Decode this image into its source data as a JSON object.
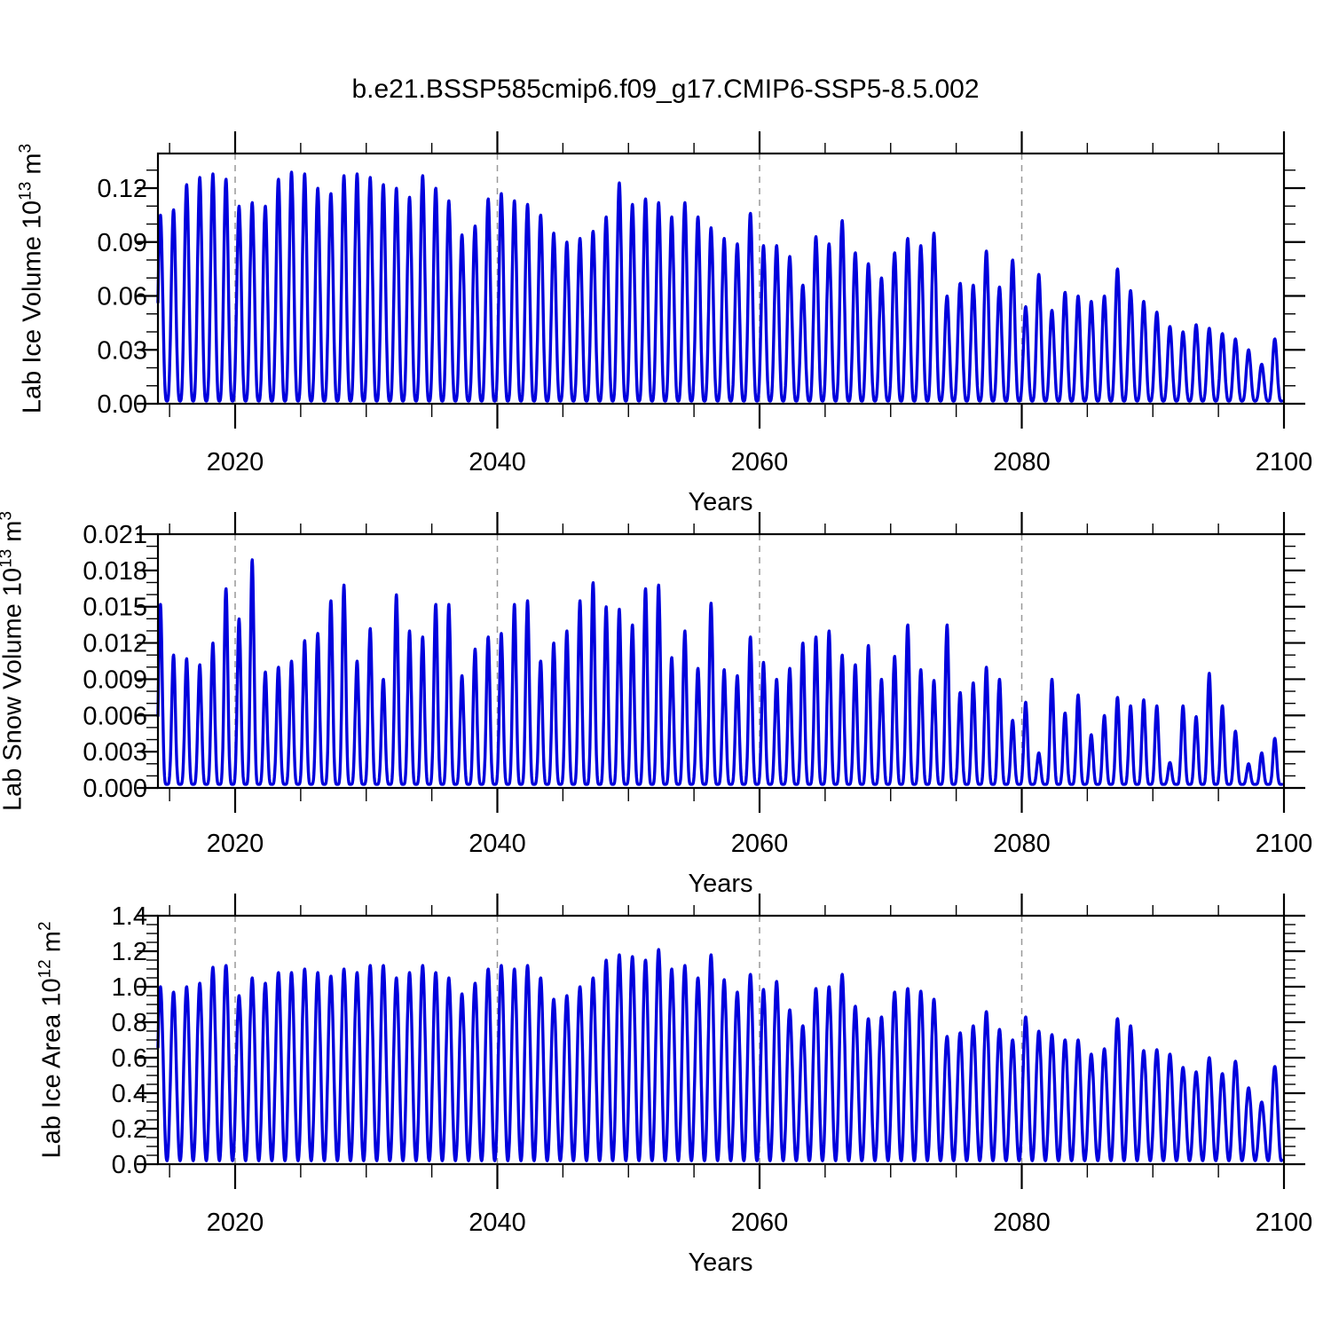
{
  "title": "b.e21.BSSP585cmip6.f09_g17.CMIP6-SSP5-8.5.002",
  "styles": {
    "background": "#ffffff",
    "line_color": "#0000dd",
    "axis_color": "#000000",
    "grid_color": "#999999",
    "text_color": "#000000"
  },
  "xaxis": {
    "label": "Years",
    "tick_years": [
      2020,
      2040,
      2060,
      2080,
      2100
    ],
    "tick_labels": [
      "2020",
      "2040",
      "2060",
      "2080",
      "2100"
    ],
    "minor_step": 5,
    "grid_years": [
      2020,
      2040,
      2060,
      2080
    ],
    "range": [
      2014.1,
      2100
    ]
  },
  "panels": [
    {
      "id": "ice-volume",
      "ylabel": {
        "text1": "Lab Ice Volume 10",
        "sup1": "13",
        "text2": " m",
        "sup2": "3"
      },
      "ytick_values": [
        0,
        0.03,
        0.06,
        0.09,
        0.12
      ],
      "ytick_labels": [
        "0.00",
        "0.03",
        "0.06",
        "0.09",
        "0.12"
      ],
      "yminor_step": 0.01,
      "ymax": 0.1393
    },
    {
      "id": "snow-volume",
      "ylabel": {
        "text1": "Lab Snow Volume 10",
        "sup1": "13",
        "text2": " m",
        "sup2": "3"
      },
      "ytick_values": [
        0,
        0.003,
        0.006,
        0.009,
        0.012,
        0.015,
        0.018,
        0.021
      ],
      "ytick_labels": [
        "0.000",
        "0.003",
        "0.006",
        "0.009",
        "0.012",
        "0.015",
        "0.018",
        "0.021"
      ],
      "yminor_step": 0.001,
      "ymax": 0.021
    },
    {
      "id": "ice-area",
      "ylabel": {
        "text1": "Lab Ice Area 10",
        "sup1": "12",
        "text2": " m",
        "sup2": "2"
      },
      "ytick_values": [
        0,
        0.2,
        0.4,
        0.6,
        0.8,
        1.0,
        1.2,
        1.4
      ],
      "ytick_labels": [
        "0.0",
        "0.2",
        "0.4",
        "0.6",
        "0.8",
        "1.0",
        "1.2",
        "1.4"
      ],
      "yminor_step": 0.05,
      "ymax": 1.4
    }
  ],
  "chart_data": [
    {
      "type": "line",
      "title": "Lab Ice Volume (seasonal cycle)",
      "ylabel": "Lab Ice Volume 10^13 m^3",
      "xlabel": "Years",
      "x_start_year": 2014,
      "x_plot_start": 2014.112,
      "x_plot_end": 2099.85,
      "ylim": [
        0,
        0.1393
      ],
      "seasonal_min": 0.0015,
      "annual_peak_values": [
        0.105,
        0.108,
        0.122,
        0.126,
        0.128,
        0.125,
        0.11,
        0.112,
        0.11,
        0.125,
        0.129,
        0.128,
        0.12,
        0.117,
        0.127,
        0.128,
        0.126,
        0.122,
        0.12,
        0.115,
        0.127,
        0.12,
        0.113,
        0.094,
        0.099,
        0.114,
        0.117,
        0.113,
        0.111,
        0.105,
        0.095,
        0.09,
        0.092,
        0.096,
        0.104,
        0.123,
        0.111,
        0.114,
        0.112,
        0.104,
        0.112,
        0.104,
        0.098,
        0.092,
        0.089,
        0.106,
        0.088,
        0.088,
        0.082,
        0.066,
        0.093,
        0.089,
        0.102,
        0.084,
        0.078,
        0.07,
        0.084,
        0.092,
        0.088,
        0.095,
        0.06,
        0.067,
        0.066,
        0.085,
        0.065,
        0.08,
        0.054,
        0.072,
        0.052,
        0.062,
        0.06,
        0.057,
        0.06,
        0.075,
        0.063,
        0.057,
        0.051,
        0.043,
        0.04,
        0.044,
        0.042,
        0.039,
        0.036,
        0.03,
        0.022,
        0.036
      ]
    },
    {
      "type": "line",
      "title": "Lab Snow Volume (seasonal cycle)",
      "ylabel": "Lab Snow Volume 10^13 m^3",
      "xlabel": "Years",
      "x_start_year": 2014,
      "x_plot_start": 2014.112,
      "x_plot_end": 2099.85,
      "ylim": [
        0,
        0.021
      ],
      "seasonal_min": 0.0003,
      "annual_peak_values": [
        0.0152,
        0.011,
        0.0107,
        0.0102,
        0.012,
        0.0165,
        0.014,
        0.0189,
        0.0096,
        0.01,
        0.0105,
        0.0122,
        0.0128,
        0.0155,
        0.0168,
        0.0105,
        0.0132,
        0.009,
        0.016,
        0.013,
        0.0125,
        0.0152,
        0.0152,
        0.0093,
        0.0115,
        0.0125,
        0.0128,
        0.0152,
        0.0155,
        0.0105,
        0.012,
        0.013,
        0.0155,
        0.017,
        0.015,
        0.0148,
        0.0135,
        0.0165,
        0.0168,
        0.0108,
        0.013,
        0.0099,
        0.0153,
        0.0098,
        0.0093,
        0.0125,
        0.0104,
        0.009,
        0.0099,
        0.012,
        0.0125,
        0.013,
        0.011,
        0.0102,
        0.0118,
        0.009,
        0.0109,
        0.0135,
        0.0098,
        0.0089,
        0.0135,
        0.0079,
        0.0087,
        0.01,
        0.009,
        0.0056,
        0.0071,
        0.0029,
        0.009,
        0.0062,
        0.0077,
        0.0044,
        0.006,
        0.0075,
        0.0068,
        0.0073,
        0.0068,
        0.0021,
        0.0068,
        0.0059,
        0.0095,
        0.0068,
        0.0047,
        0.002,
        0.0029,
        0.0041
      ]
    },
    {
      "type": "line",
      "title": "Lab Ice Area (seasonal cycle)",
      "ylabel": "Lab Ice Area 10^12 m^2",
      "xlabel": "Years",
      "x_start_year": 2014,
      "x_plot_start": 2014.112,
      "x_plot_end": 2099.85,
      "ylim": [
        0,
        1.4
      ],
      "seasonal_min": 0.02,
      "annual_peak_values": [
        1.0,
        0.97,
        1.0,
        1.02,
        1.11,
        1.12,
        0.95,
        1.05,
        1.02,
        1.08,
        1.08,
        1.1,
        1.08,
        1.06,
        1.1,
        1.08,
        1.12,
        1.12,
        1.05,
        1.08,
        1.12,
        1.08,
        1.05,
        0.96,
        1.02,
        1.1,
        1.12,
        1.1,
        1.12,
        1.05,
        0.93,
        0.95,
        1.0,
        1.05,
        1.15,
        1.18,
        1.17,
        1.15,
        1.21,
        1.1,
        1.12,
        1.05,
        1.18,
        1.04,
        0.97,
        1.07,
        0.985,
        1.03,
        0.87,
        0.78,
        0.99,
        1.0,
        1.07,
        0.89,
        0.82,
        0.83,
        0.97,
        0.99,
        0.975,
        0.93,
        0.72,
        0.74,
        0.78,
        0.86,
        0.76,
        0.7,
        0.83,
        0.75,
        0.73,
        0.7,
        0.7,
        0.62,
        0.65,
        0.82,
        0.78,
        0.64,
        0.645,
        0.62,
        0.545,
        0.52,
        0.6,
        0.51,
        0.58,
        0.43,
        0.35,
        0.55
      ]
    }
  ]
}
